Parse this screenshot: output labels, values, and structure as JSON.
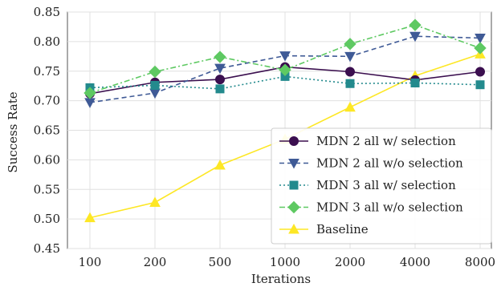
{
  "chart_data": {
    "type": "line",
    "xlabel": "Iterations",
    "ylabel": "Success Rate",
    "categories": [
      "100",
      "200",
      "500",
      "1000",
      "2000",
      "4000",
      "8000"
    ],
    "yticks": [
      "0.45",
      "0.50",
      "0.55",
      "0.60",
      "0.65",
      "0.70",
      "0.75",
      "0.80",
      "0.85"
    ],
    "ylim": [
      0.45,
      0.85
    ],
    "grid": true,
    "legend_position": "lower-right",
    "series": [
      {
        "name": "MDN 2 all w/ selection",
        "values": [
          0.712,
          0.731,
          0.736,
          0.757,
          0.749,
          0.735,
          0.749
        ],
        "color": "#3b0f4f",
        "marker": "circle",
        "dash": "solid"
      },
      {
        "name": "MDN 2 all w/o selection",
        "values": [
          0.697,
          0.713,
          0.755,
          0.776,
          0.775,
          0.809,
          0.806
        ],
        "color": "#3f5a96",
        "marker": "triangle-down",
        "dash": "dashed"
      },
      {
        "name": "MDN 3 all w/ selection",
        "values": [
          0.722,
          0.726,
          0.72,
          0.741,
          0.729,
          0.73,
          0.727
        ],
        "color": "#238a8d",
        "marker": "square",
        "dash": "dotted"
      },
      {
        "name": "MDN 3 all w/o selection",
        "values": [
          0.713,
          0.749,
          0.774,
          0.752,
          0.796,
          0.828,
          0.789
        ],
        "color": "#5ec962",
        "marker": "diamond",
        "dash": "dashdot"
      },
      {
        "name": "Baseline",
        "values": [
          0.502,
          0.528,
          0.591,
          0.635,
          0.689,
          0.742,
          0.779
        ],
        "color": "#fde725",
        "marker": "triangle-up",
        "dash": "solid"
      }
    ]
  }
}
